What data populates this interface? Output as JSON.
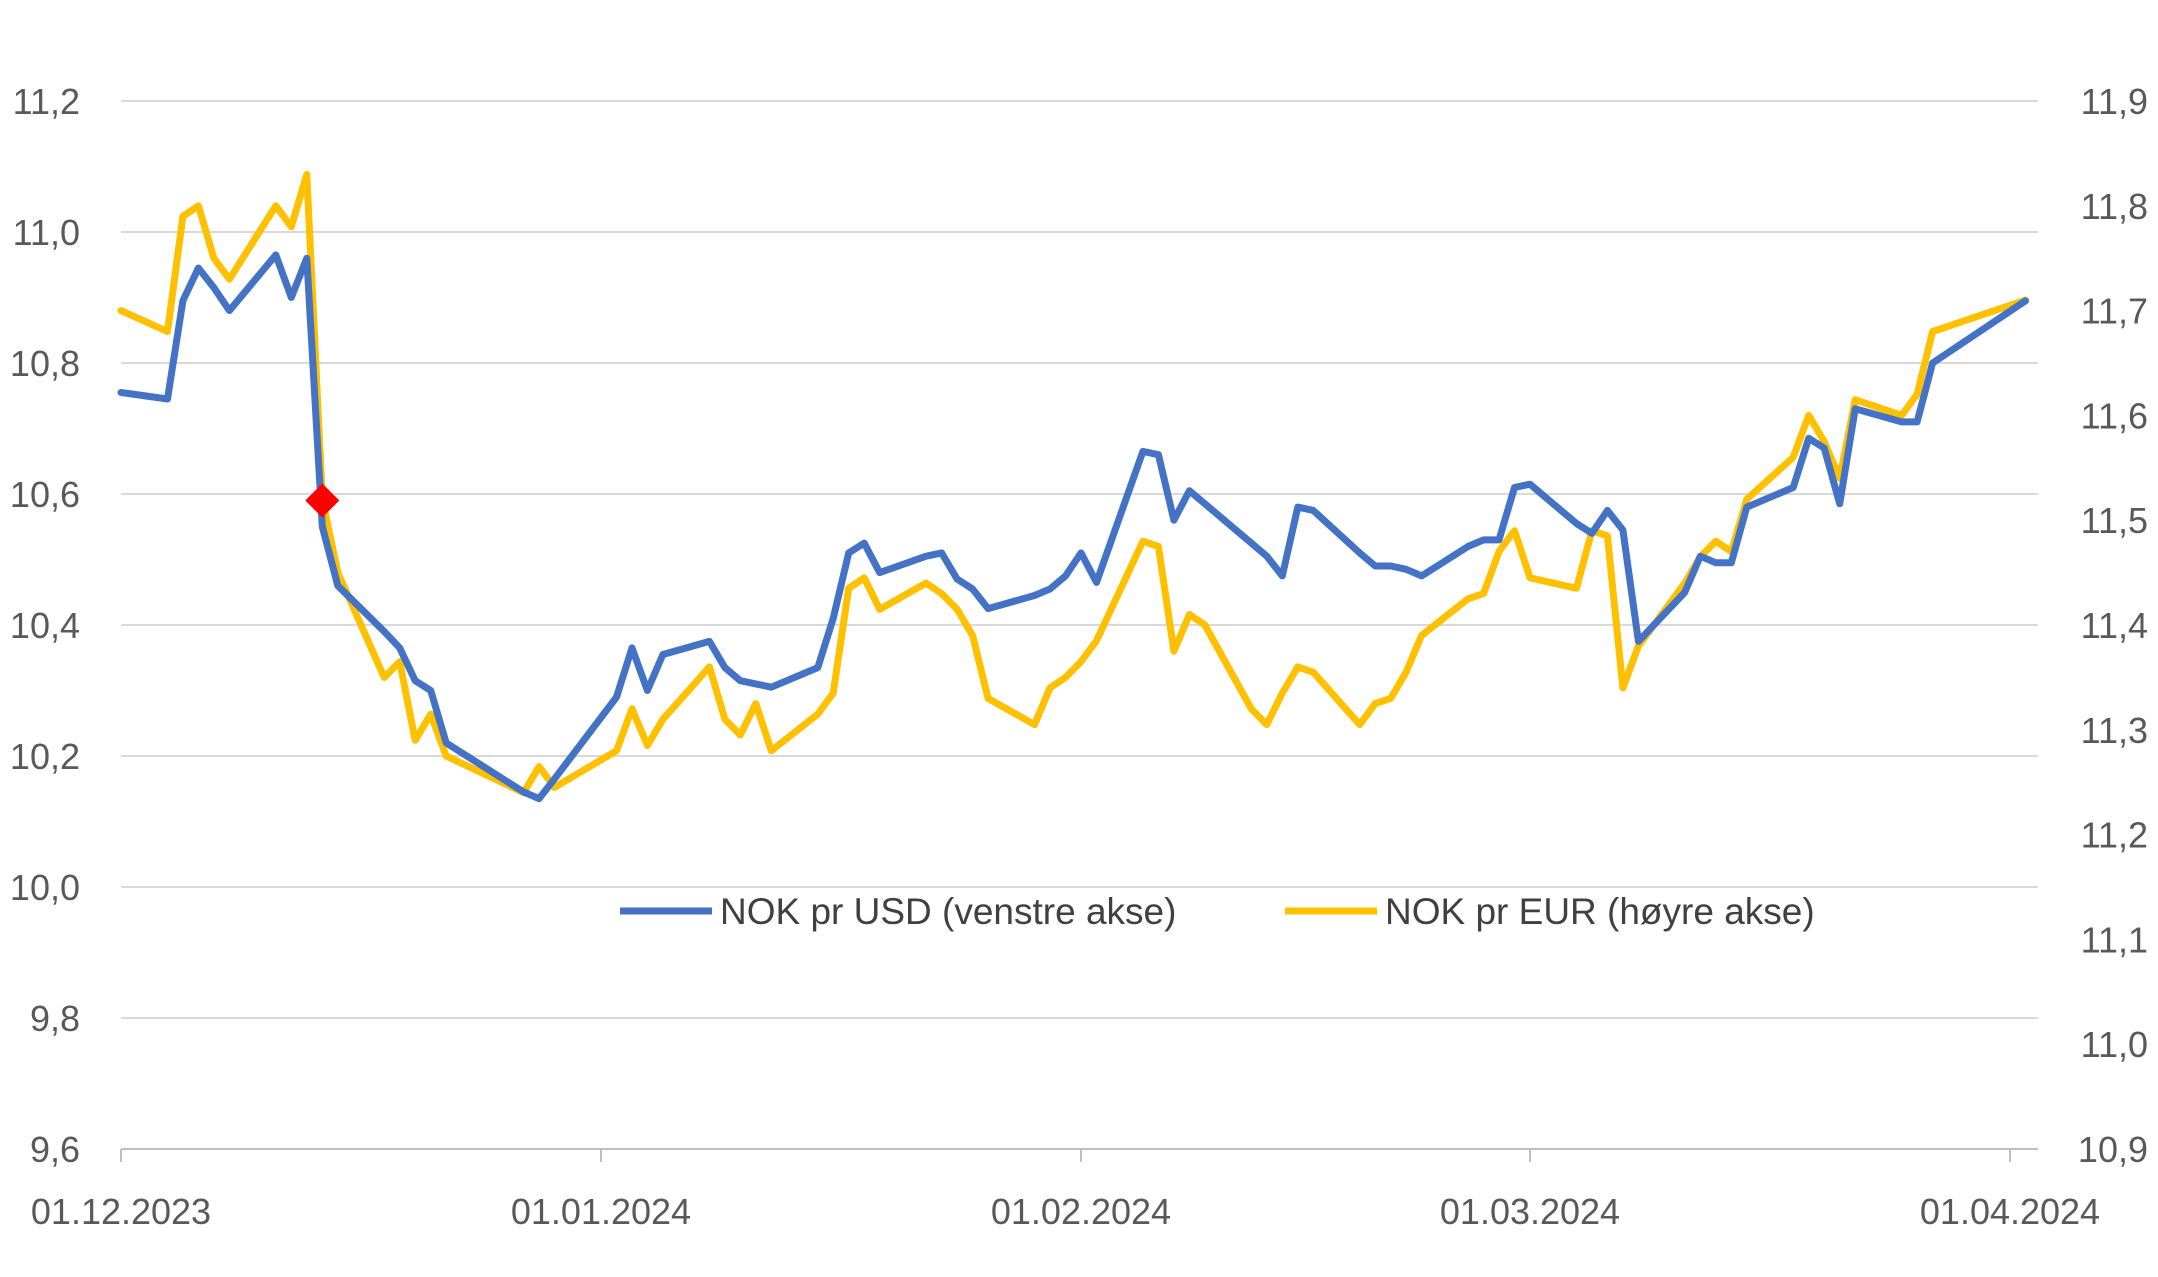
{
  "chart_data": {
    "type": "line",
    "x_axis": {
      "tick_labels": [
        "01.12.2023",
        "01.01.2024",
        "01.02.2024",
        "01.03.2024",
        "01.04.2024"
      ],
      "range": [
        "2023-12-01",
        "2024-04-01"
      ]
    },
    "y_left": {
      "ylim": [
        9.6,
        11.2
      ],
      "tick_labels": [
        "9,6",
        "9,8",
        "10,0",
        "10,2",
        "10,4",
        "10,6",
        "10,8",
        "11,0",
        "11,2"
      ]
    },
    "y_right": {
      "ylim": [
        10.9,
        11.9
      ],
      "tick_labels": [
        "10,9",
        "11,0",
        "11,1",
        "11,2",
        "11,3",
        "11,4",
        "11,5",
        "11,6",
        "11,7",
        "11,8",
        "11,9"
      ]
    },
    "grid": "horizontal",
    "legend_position": "center",
    "series": [
      {
        "name": "NOK pr USD (venstre akse)",
        "axis": "left",
        "color": "#4472C4",
        "points": [
          [
            "2023-12-01",
            10.755
          ],
          [
            "2023-12-04",
            10.745
          ],
          [
            "2023-12-05",
            10.895
          ],
          [
            "2023-12-06",
            10.945
          ],
          [
            "2023-12-07",
            10.915
          ],
          [
            "2023-12-08",
            10.88
          ],
          [
            "2023-12-11",
            10.965
          ],
          [
            "2023-12-12",
            10.9
          ],
          [
            "2023-12-13",
            10.96
          ],
          [
            "2023-12-14",
            10.55
          ],
          [
            "2023-12-15",
            10.46
          ],
          [
            "2023-12-18",
            10.39
          ],
          [
            "2023-12-19",
            10.365
          ],
          [
            "2023-12-20",
            10.315
          ],
          [
            "2023-12-21",
            10.3
          ],
          [
            "2023-12-22",
            10.22
          ],
          [
            "2023-12-27",
            10.145
          ],
          [
            "2023-12-28",
            10.135
          ],
          [
            "2023-12-29",
            10.165
          ],
          [
            "2024-01-02",
            10.29
          ],
          [
            "2024-01-03",
            10.365
          ],
          [
            "2024-01-04",
            10.3
          ],
          [
            "2024-01-05",
            10.355
          ],
          [
            "2024-01-08",
            10.375
          ],
          [
            "2024-01-09",
            10.335
          ],
          [
            "2024-01-10",
            10.315
          ],
          [
            "2024-01-11",
            10.31
          ],
          [
            "2024-01-12",
            10.305
          ],
          [
            "2024-01-15",
            10.335
          ],
          [
            "2024-01-16",
            10.41
          ],
          [
            "2024-01-17",
            10.51
          ],
          [
            "2024-01-18",
            10.525
          ],
          [
            "2024-01-19",
            10.48
          ],
          [
            "2024-01-22",
            10.505
          ],
          [
            "2024-01-23",
            10.51
          ],
          [
            "2024-01-24",
            10.47
          ],
          [
            "2024-01-25",
            10.455
          ],
          [
            "2024-01-26",
            10.425
          ],
          [
            "2024-01-29",
            10.445
          ],
          [
            "2024-01-30",
            10.455
          ],
          [
            "2024-01-31",
            10.475
          ],
          [
            "2024-02-01",
            10.51
          ],
          [
            "2024-02-02",
            10.465
          ],
          [
            "2024-02-05",
            10.665
          ],
          [
            "2024-02-06",
            10.66
          ],
          [
            "2024-02-07",
            10.56
          ],
          [
            "2024-02-08",
            10.605
          ],
          [
            "2024-02-09",
            10.585
          ],
          [
            "2024-02-12",
            10.525
          ],
          [
            "2024-02-13",
            10.505
          ],
          [
            "2024-02-14",
            10.475
          ],
          [
            "2024-02-15",
            10.58
          ],
          [
            "2024-02-16",
            10.575
          ],
          [
            "2024-02-19",
            10.51
          ],
          [
            "2024-02-20",
            10.49
          ],
          [
            "2024-02-21",
            10.49
          ],
          [
            "2024-02-22",
            10.485
          ],
          [
            "2024-02-23",
            10.475
          ],
          [
            "2024-02-26",
            10.52
          ],
          [
            "2024-02-27",
            10.53
          ],
          [
            "2024-02-28",
            10.53
          ],
          [
            "2024-02-29",
            10.61
          ],
          [
            "2024-03-01",
            10.615
          ],
          [
            "2024-03-04",
            10.555
          ],
          [
            "2024-03-05",
            10.54
          ],
          [
            "2024-03-06",
            10.575
          ],
          [
            "2024-03-07",
            10.545
          ],
          [
            "2024-03-08",
            10.375
          ],
          [
            "2024-03-11",
            10.45
          ],
          [
            "2024-03-12",
            10.505
          ],
          [
            "2024-03-13",
            10.495
          ],
          [
            "2024-03-14",
            10.495
          ],
          [
            "2024-03-15",
            10.58
          ],
          [
            "2024-03-18",
            10.61
          ],
          [
            "2024-03-19",
            10.685
          ],
          [
            "2024-03-20",
            10.67
          ],
          [
            "2024-03-21",
            10.585
          ],
          [
            "2024-03-22",
            10.73
          ],
          [
            "2024-03-25",
            10.71
          ],
          [
            "2024-03-26",
            10.71
          ],
          [
            "2024-03-27",
            10.8
          ],
          [
            "2024-04-02",
            10.895
          ]
        ]
      },
      {
        "name": "NOK pr EUR (høyre akse)",
        "axis": "right",
        "color": "#FFC000",
        "points": [
          [
            "2023-12-01",
            11.7
          ],
          [
            "2023-12-04",
            11.68
          ],
          [
            "2023-12-05",
            11.79
          ],
          [
            "2023-12-06",
            11.8
          ],
          [
            "2023-12-07",
            11.75
          ],
          [
            "2023-12-08",
            11.73
          ],
          [
            "2023-12-11",
            11.8
          ],
          [
            "2023-12-12",
            11.78
          ],
          [
            "2023-12-13",
            11.83
          ],
          [
            "2023-12-14",
            11.52
          ],
          [
            "2023-12-15",
            11.45
          ],
          [
            "2023-12-18",
            11.35
          ],
          [
            "2023-12-19",
            11.365
          ],
          [
            "2023-12-20",
            11.29
          ],
          [
            "2023-12-21",
            11.315
          ],
          [
            "2023-12-22",
            11.275
          ],
          [
            "2023-12-27",
            11.24
          ],
          [
            "2023-12-28",
            11.265
          ],
          [
            "2023-12-29",
            11.245
          ],
          [
            "2024-01-02",
            11.28
          ],
          [
            "2024-01-03",
            11.32
          ],
          [
            "2024-01-04",
            11.285
          ],
          [
            "2024-01-05",
            11.31
          ],
          [
            "2024-01-08",
            11.36
          ],
          [
            "2024-01-09",
            11.31
          ],
          [
            "2024-01-10",
            11.295
          ],
          [
            "2024-01-11",
            11.325
          ],
          [
            "2024-01-12",
            11.28
          ],
          [
            "2024-01-15",
            11.315
          ],
          [
            "2024-01-16",
            11.335
          ],
          [
            "2024-01-17",
            11.435
          ],
          [
            "2024-01-18",
            11.445
          ],
          [
            "2024-01-19",
            11.415
          ],
          [
            "2024-01-22",
            11.44
          ],
          [
            "2024-01-23",
            11.43
          ],
          [
            "2024-01-24",
            11.415
          ],
          [
            "2024-01-25",
            11.39
          ],
          [
            "2024-01-26",
            11.33
          ],
          [
            "2024-01-29",
            11.305
          ],
          [
            "2024-01-30",
            11.34
          ],
          [
            "2024-01-31",
            11.35
          ],
          [
            "2024-02-01",
            11.365
          ],
          [
            "2024-02-02",
            11.385
          ],
          [
            "2024-02-05",
            11.48
          ],
          [
            "2024-02-06",
            11.475
          ],
          [
            "2024-02-07",
            11.375
          ],
          [
            "2024-02-08",
            11.41
          ],
          [
            "2024-02-09",
            11.4
          ],
          [
            "2024-02-12",
            11.32
          ],
          [
            "2024-02-13",
            11.305
          ],
          [
            "2024-02-14",
            11.335
          ],
          [
            "2024-02-15",
            11.36
          ],
          [
            "2024-02-16",
            11.355
          ],
          [
            "2024-02-19",
            11.305
          ],
          [
            "2024-02-20",
            11.325
          ],
          [
            "2024-02-21",
            11.33
          ],
          [
            "2024-02-22",
            11.355
          ],
          [
            "2024-02-23",
            11.39
          ],
          [
            "2024-02-26",
            11.425
          ],
          [
            "2024-02-27",
            11.43
          ],
          [
            "2024-02-28",
            11.47
          ],
          [
            "2024-02-29",
            11.49
          ],
          [
            "2024-03-01",
            11.445
          ],
          [
            "2024-03-04",
            11.435
          ],
          [
            "2024-03-05",
            11.49
          ],
          [
            "2024-03-06",
            11.485
          ],
          [
            "2024-03-07",
            11.34
          ],
          [
            "2024-03-08",
            11.38
          ],
          [
            "2024-03-11",
            11.44
          ],
          [
            "2024-03-12",
            11.465
          ],
          [
            "2024-03-13",
            11.48
          ],
          [
            "2024-03-14",
            11.47
          ],
          [
            "2024-03-15",
            11.52
          ],
          [
            "2024-03-18",
            11.56
          ],
          [
            "2024-03-19",
            11.6
          ],
          [
            "2024-03-20",
            11.575
          ],
          [
            "2024-03-21",
            11.54
          ],
          [
            "2024-03-22",
            11.615
          ],
          [
            "2024-03-25",
            11.6
          ],
          [
            "2024-03-26",
            11.62
          ],
          [
            "2024-03-27",
            11.68
          ],
          [
            "2024-04-02",
            11.71
          ]
        ]
      }
    ],
    "annotations": [
      {
        "type": "marker",
        "shape": "diamond",
        "color": "#FF0000",
        "date": "2023-12-14",
        "value_left": 10.59
      }
    ]
  }
}
